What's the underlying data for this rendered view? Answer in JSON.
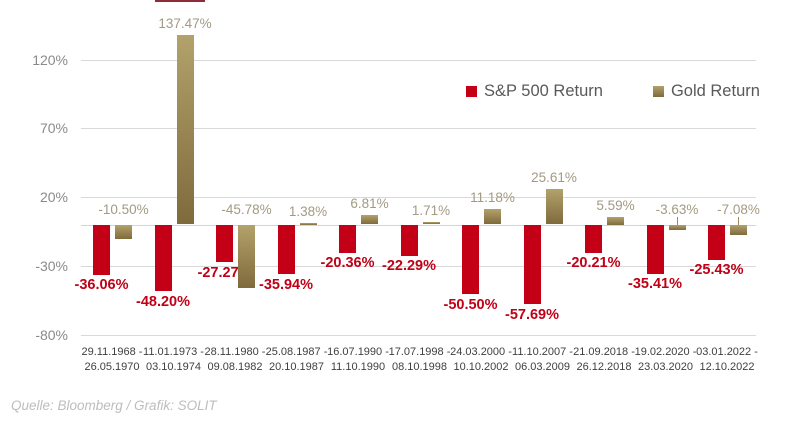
{
  "chart_data": {
    "type": "bar",
    "title": "",
    "categories": [
      {
        "from": "29.11.1968",
        "to": "26.05.1970"
      },
      {
        "from": "11.01.1973",
        "to": "03.10.1974"
      },
      {
        "from": "28.11.1980",
        "to": "09.08.1982"
      },
      {
        "from": "25.08.1987",
        "to": "20.10.1987"
      },
      {
        "from": "16.07.1990",
        "to": "11.10.1990"
      },
      {
        "from": "17.07.1998",
        "to": "08.10.1998"
      },
      {
        "from": "24.03.2000",
        "to": "10.10.2002"
      },
      {
        "from": "11.10.2007",
        "to": "06.03.2009"
      },
      {
        "from": "21.09.2018",
        "to": "26.12.2018"
      },
      {
        "from": "19.02.2020",
        "to": "23.03.2020"
      },
      {
        "from": "03.01.2022",
        "to": "12.10.2022"
      }
    ],
    "series": [
      {
        "name": "S&P 500 Return",
        "color": "#c40016",
        "points": [
          {
            "value": -36.06,
            "label": "-36.06%"
          },
          {
            "value": -48.2,
            "label": "-48.20%"
          },
          {
            "value": -27.27,
            "label": "-27.27%"
          },
          {
            "value": -35.94,
            "label": "-35.94%"
          },
          {
            "value": -20.36,
            "label": "-20.36%"
          },
          {
            "value": -22.29,
            "label": "-22.29%"
          },
          {
            "value": -50.5,
            "label": "-50.50%"
          },
          {
            "value": -57.69,
            "label": "-57.69%"
          },
          {
            "value": -20.21,
            "label": "-20.21%"
          },
          {
            "value": -35.41,
            "label": "-35.41%"
          },
          {
            "value": -25.43,
            "label": "-25.43%"
          }
        ]
      },
      {
        "name": "Gold Return",
        "color_top": "#b2a26b",
        "color_bottom": "#7f6a3c",
        "points": [
          {
            "value": -10.5,
            "label": "-10.50%"
          },
          {
            "value": 137.47,
            "label": "137.47%"
          },
          {
            "value": -45.78,
            "label": "-45.78%"
          },
          {
            "value": 1.38,
            "label": "1.38%"
          },
          {
            "value": 6.81,
            "label": "6.81%"
          },
          {
            "value": 1.71,
            "label": "1.71%"
          },
          {
            "value": 11.18,
            "label": "11.18%"
          },
          {
            "value": 25.61,
            "label": "25.61%"
          },
          {
            "value": 5.59,
            "label": "5.59%"
          },
          {
            "value": -3.63,
            "label": "-3.63%",
            "leader": true
          },
          {
            "value": -7.08,
            "label": "-7.08%",
            "leader": true
          }
        ]
      }
    ],
    "y_axis": {
      "ticks": [
        120,
        70,
        20,
        -30,
        -80
      ],
      "tick_labels": [
        "120%",
        "70%",
        "20%",
        "-30%",
        "-80%"
      ],
      "ylim": [
        -80,
        140
      ],
      "grid": true
    },
    "legend_position": "top-right-inside",
    "xlabel": "",
    "ylabel": ""
  },
  "footer": {
    "source": "Quelle: Bloomberg / Grafik: SOLIT"
  }
}
